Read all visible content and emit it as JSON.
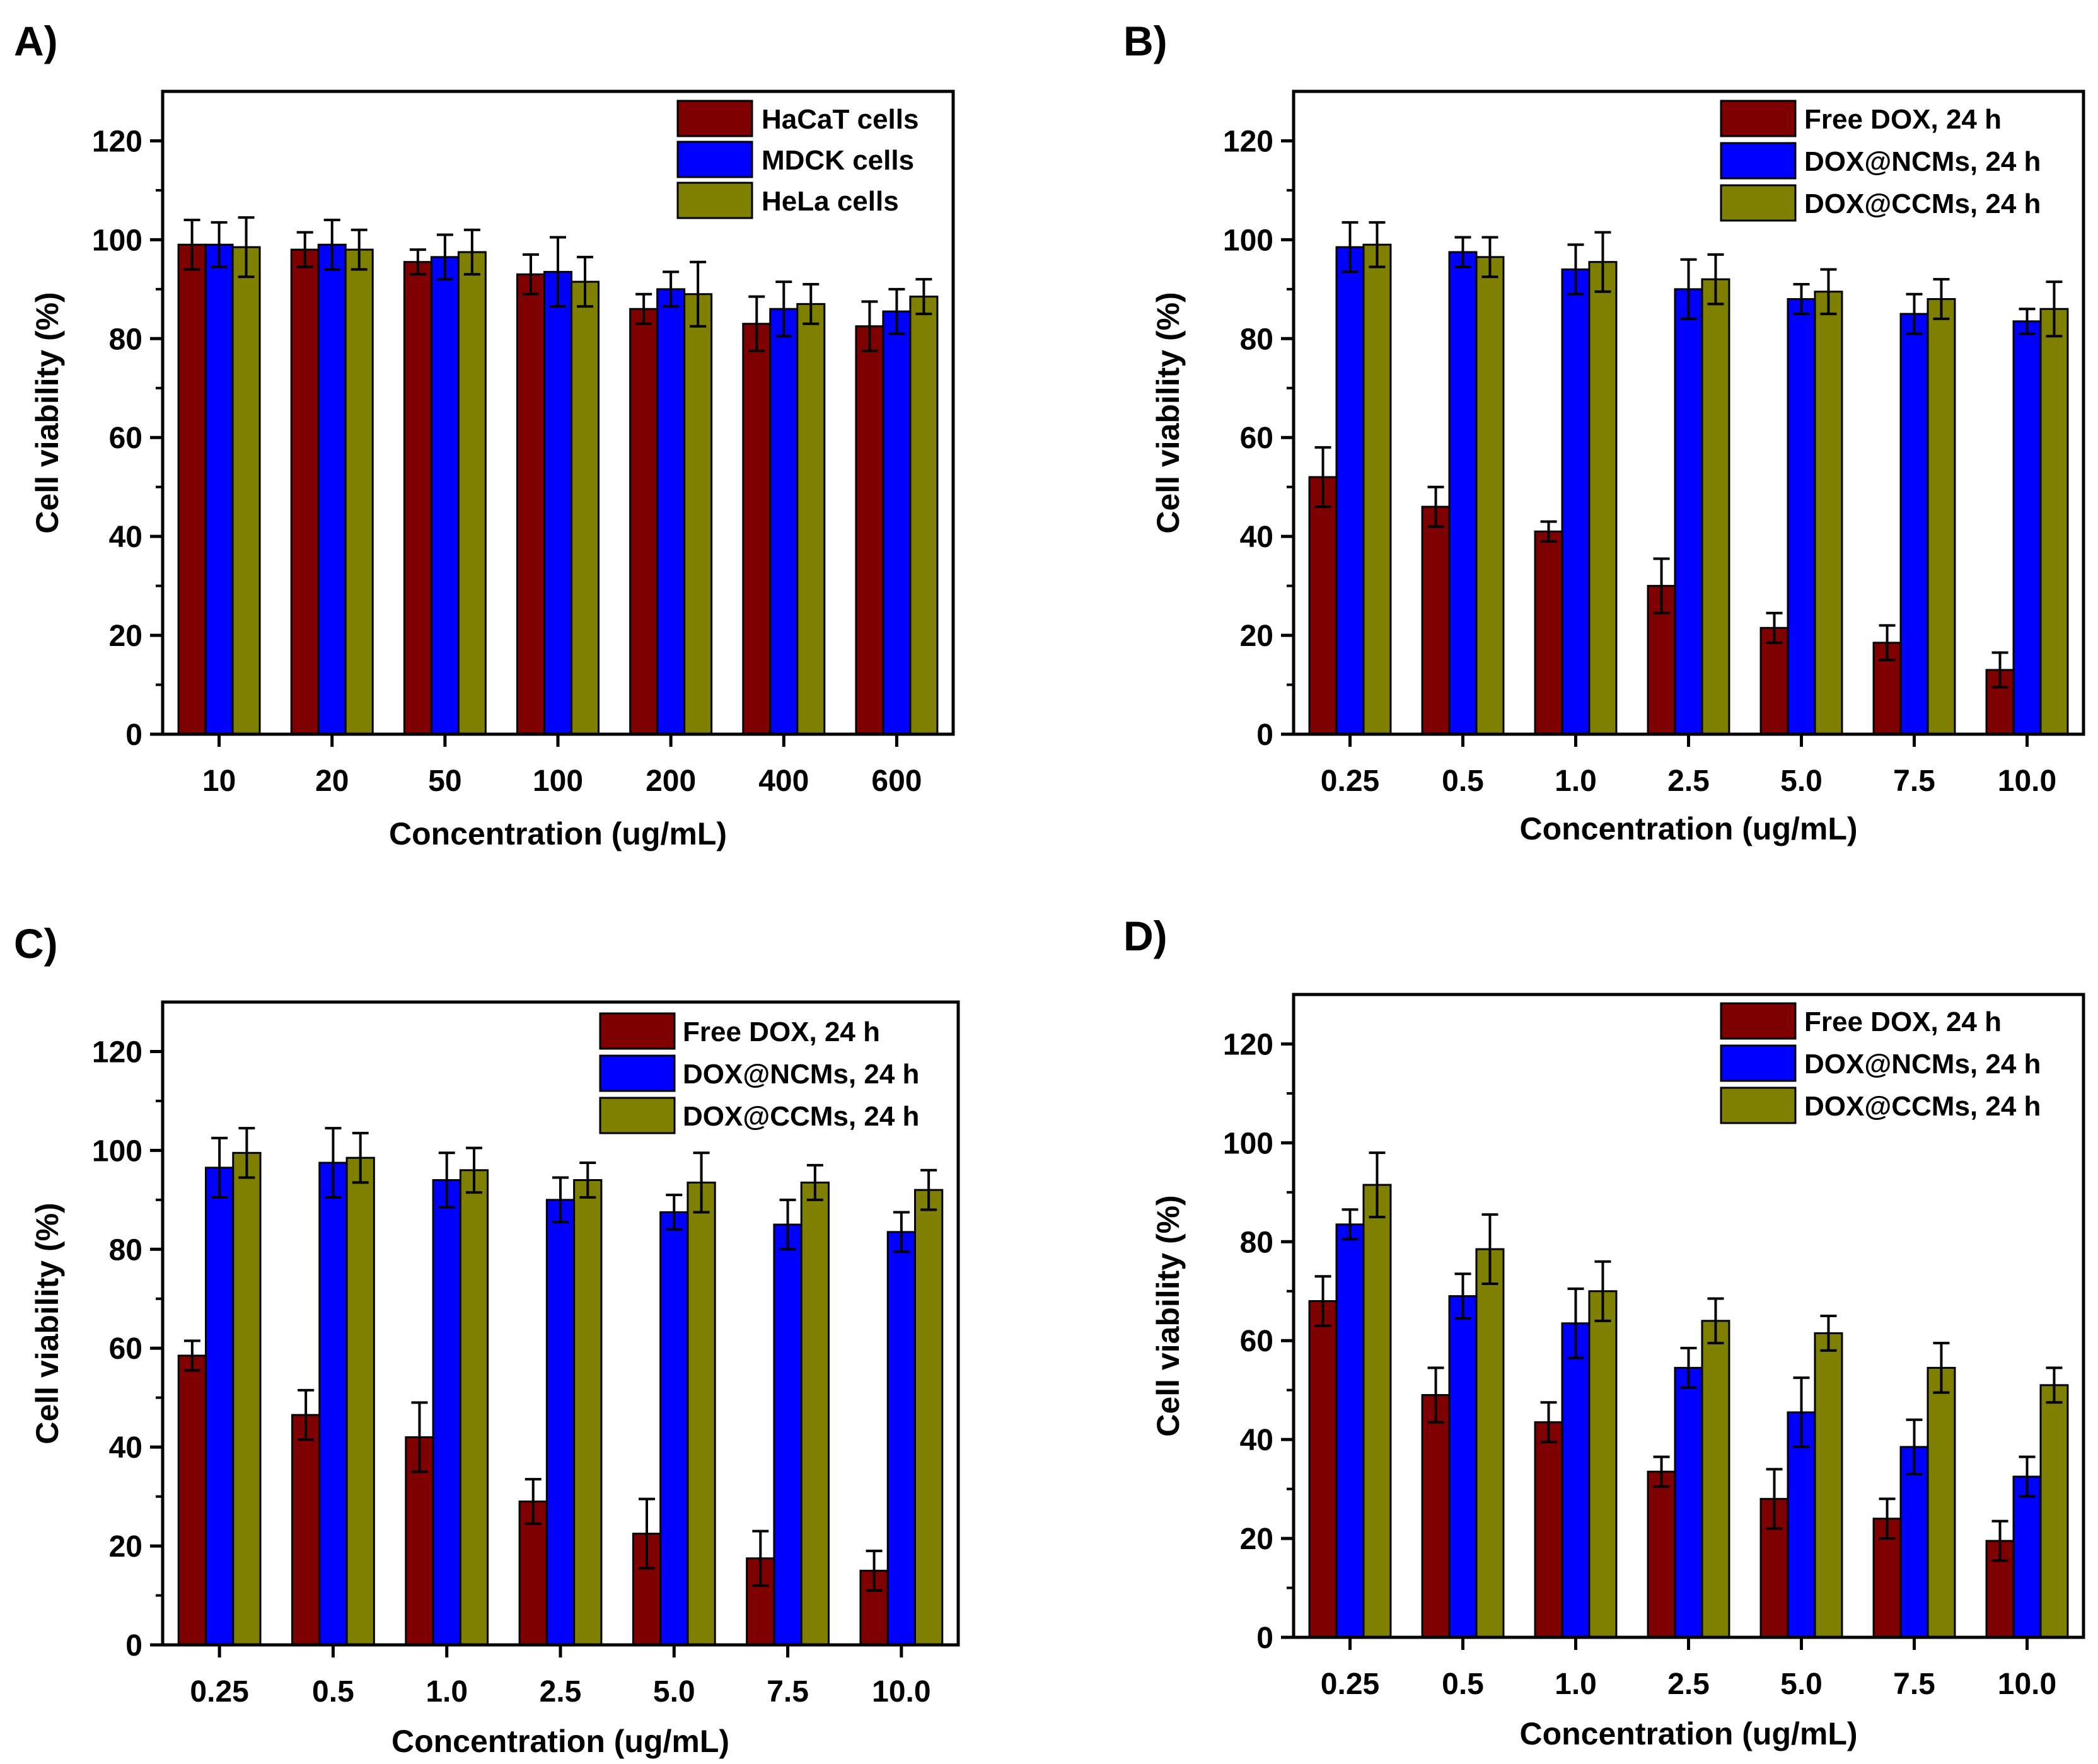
{
  "colors": {
    "red": "#7f0000",
    "blue": "#0000ff",
    "olive": "#808000"
  },
  "chart_data": [
    {
      "panel_label": "A)",
      "type": "bar",
      "xlabel": "Concentration (ug/mL)",
      "ylabel": "Cell viability (%)",
      "ylim": [
        0,
        130
      ],
      "yticks": [
        "0",
        "20",
        "40",
        "60",
        "80",
        "100",
        "120"
      ],
      "categories": [
        "10",
        "20",
        "50",
        "100",
        "200",
        "400",
        "600"
      ],
      "legend_position": "top-right",
      "series": [
        {
          "name": "HaCaT cells",
          "color": "#7f0000",
          "values": [
            99,
            98,
            95.5,
            93,
            86,
            83,
            82.5
          ],
          "errors": [
            5,
            3.5,
            2.5,
            4,
            3,
            5.5,
            5
          ]
        },
        {
          "name": "MDCK cells",
          "color": "#0000ff",
          "values": [
            99,
            99,
            96.5,
            93.5,
            90,
            86,
            85.5
          ],
          "errors": [
            4.5,
            5,
            4.5,
            7,
            3.5,
            5.5,
            4.5
          ]
        },
        {
          "name": "HeLa cells",
          "color": "#808000",
          "values": [
            98.5,
            98,
            97.5,
            91.5,
            89,
            87,
            88.5
          ],
          "errors": [
            6,
            4,
            4.5,
            5,
            6.5,
            4,
            3.5
          ]
        }
      ]
    },
    {
      "panel_label": "B)",
      "type": "bar",
      "xlabel": "Concentration (ug/mL)",
      "ylabel": "Cell viability (%)",
      "ylim": [
        0,
        130
      ],
      "yticks": [
        "0",
        "20",
        "40",
        "60",
        "80",
        "100",
        "120"
      ],
      "categories": [
        "0.25",
        "0.5",
        "1.0",
        "2.5",
        "5.0",
        "7.5",
        "10.0"
      ],
      "legend_position": "top-right",
      "series": [
        {
          "name": "Free DOX, 24 h",
          "color": "#7f0000",
          "values": [
            52,
            46,
            41,
            30,
            21.5,
            18.5,
            13
          ],
          "errors": [
            6,
            4,
            2,
            5.5,
            3,
            3.5,
            3.5
          ]
        },
        {
          "name": "DOX@NCMs, 24 h",
          "color": "#0000ff",
          "values": [
            98.5,
            97.5,
            94,
            90,
            88,
            85,
            83.5
          ],
          "errors": [
            5,
            3,
            5,
            6,
            3,
            4,
            2.5
          ]
        },
        {
          "name": "DOX@CCMs, 24 h",
          "color": "#808000",
          "values": [
            99,
            96.5,
            95.5,
            92,
            89.5,
            88,
            86
          ],
          "errors": [
            4.5,
            4,
            6,
            5,
            4.5,
            4,
            5.5
          ]
        }
      ]
    },
    {
      "panel_label": "C)",
      "type": "bar",
      "xlabel": "Concentration (ug/mL)",
      "ylabel": "Cell viability (%)",
      "ylim": [
        0,
        130
      ],
      "yticks": [
        "0",
        "20",
        "40",
        "60",
        "80",
        "100",
        "120"
      ],
      "categories": [
        "0.25",
        "0.5",
        "1.0",
        "2.5",
        "5.0",
        "7.5",
        "10.0"
      ],
      "legend_position": "top-right",
      "series": [
        {
          "name": "Free DOX, 24 h",
          "color": "#7f0000",
          "values": [
            58.5,
            46.5,
            42,
            29,
            22.5,
            17.5,
            15
          ],
          "errors": [
            3,
            5,
            7,
            4.5,
            7,
            5.5,
            4
          ]
        },
        {
          "name": "DOX@NCMs, 24 h",
          "color": "#0000ff",
          "values": [
            96.5,
            97.5,
            94,
            90,
            87.5,
            85,
            83.5
          ],
          "errors": [
            6,
            7,
            5.5,
            4.5,
            3.5,
            5,
            4
          ]
        },
        {
          "name": "DOX@CCMs, 24 h",
          "color": "#808000",
          "values": [
            99.5,
            98.5,
            96,
            94,
            93.5,
            93.5,
            92
          ],
          "errors": [
            5,
            5,
            4.5,
            3.5,
            6,
            3.5,
            4
          ]
        }
      ]
    },
    {
      "panel_label": "D)",
      "type": "bar",
      "xlabel": "Concentration (ug/mL)",
      "ylabel": "Cell viability (%)",
      "ylim": [
        0,
        130
      ],
      "yticks": [
        "0",
        "20",
        "40",
        "60",
        "80",
        "100",
        "120"
      ],
      "categories": [
        "0.25",
        "0.5",
        "1.0",
        "2.5",
        "5.0",
        "7.5",
        "10.0"
      ],
      "legend_position": "top-right",
      "series": [
        {
          "name": "Free DOX, 24 h",
          "color": "#7f0000",
          "values": [
            68,
            49,
            43.5,
            33.5,
            28,
            24,
            19.5
          ],
          "errors": [
            5,
            5.5,
            4,
            3,
            6,
            4,
            4
          ]
        },
        {
          "name": "DOX@NCMs, 24 h",
          "color": "#0000ff",
          "values": [
            83.5,
            69,
            63.5,
            54.5,
            45.5,
            38.5,
            32.5
          ],
          "errors": [
            3,
            4.5,
            7,
            4,
            7,
            5.5,
            4
          ]
        },
        {
          "name": "DOX@CCMs, 24 h",
          "color": "#808000",
          "values": [
            91.5,
            78.5,
            70,
            64,
            61.5,
            54.5,
            51
          ],
          "errors": [
            6.5,
            7,
            6,
            4.5,
            3.5,
            5,
            3.5
          ]
        }
      ]
    }
  ]
}
